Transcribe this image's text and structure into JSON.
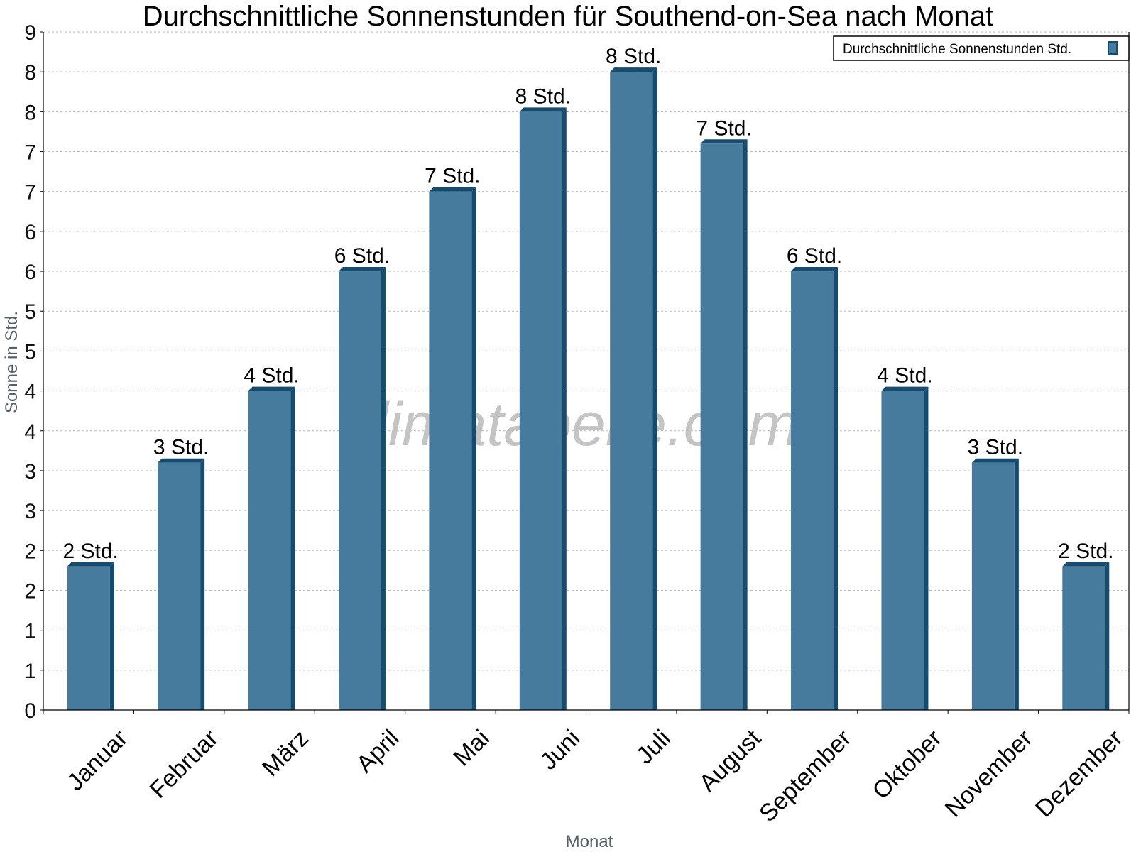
{
  "chart_data": {
    "type": "bar",
    "title": "Durchschnittliche Sonnenstunden für Southend-on-Sea nach Monat",
    "xlabel": "Monat",
    "ylabel": "Sonne in Std.",
    "categories": [
      "Januar",
      "Februar",
      "März",
      "April",
      "Mai",
      "Juni",
      "Juli",
      "August",
      "September",
      "Oktober",
      "November",
      "Dezember"
    ],
    "series": [
      {
        "name": "Durchschnittliche Sonnenstunden Std.",
        "values": [
          1.8,
          3.1,
          4.0,
          5.5,
          6.5,
          7.5,
          8.0,
          7.1,
          5.5,
          4.0,
          3.1,
          1.8
        ],
        "data_labels": [
          "2 Std.",
          "3 Std.",
          "4 Std.",
          "6 Std.",
          "7 Std.",
          "8 Std.",
          "8 Std.",
          "7 Std.",
          "6 Std.",
          "4 Std.",
          "3 Std.",
          "2 Std."
        ]
      }
    ],
    "ylim": [
      0,
      8.5
    ],
    "yticks": [
      0,
      0.5,
      1,
      1.5,
      2,
      2.5,
      3,
      3.5,
      4,
      4.5,
      5,
      5.5,
      6,
      6.5,
      7,
      7.5,
      8,
      8.5
    ],
    "ytick_labels": [
      "0",
      "1",
      "1",
      "2",
      "2",
      "3",
      "3",
      "4",
      "4",
      "5",
      "5",
      "6",
      "6",
      "7",
      "7",
      "8",
      "8",
      "9"
    ],
    "grid": true,
    "legend": "top-right",
    "watermark": "klimatabelle.com",
    "colors": {
      "bar": "#467b9d",
      "bar_side": "#174c6e",
      "grid": "#bbbbbb"
    }
  }
}
